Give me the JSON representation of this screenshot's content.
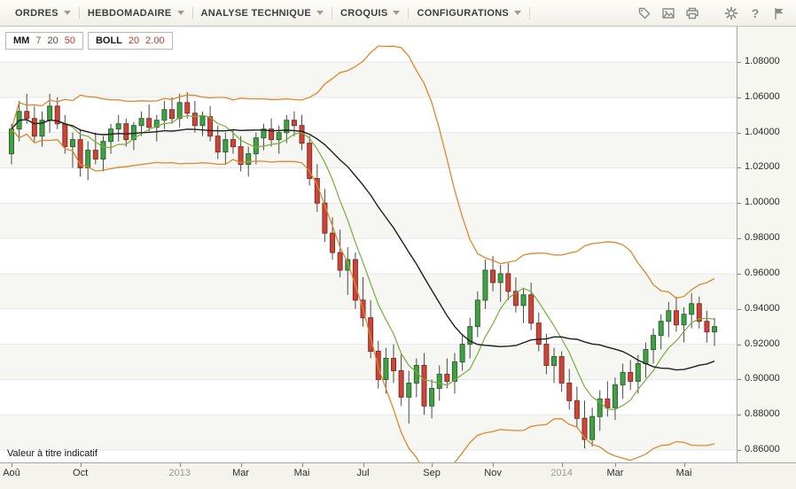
{
  "toolbar": {
    "menus": [
      {
        "id": "ordres",
        "label": "ORDRES"
      },
      {
        "id": "hebdomadaire",
        "label": "HEBDOMADAIRE"
      },
      {
        "id": "analyse-technique",
        "label": "ANALYSE TECHNIQUE"
      },
      {
        "id": "croquis",
        "label": "CROQUIS"
      },
      {
        "id": "configurations",
        "label": "CONFIGURATIONS"
      }
    ],
    "icons": [
      {
        "name": "tags-icon"
      },
      {
        "name": "image-icon"
      },
      {
        "name": "print-icon"
      },
      {
        "name": "settings-icon"
      },
      {
        "name": "help-icon",
        "glyph": "?"
      },
      {
        "name": "flag-icon"
      }
    ]
  },
  "legend": {
    "mm_label": "MM",
    "mm_periods": [
      {
        "value": "7",
        "color": "#2e8b2e"
      },
      {
        "value": "20",
        "color": "#4d4d49"
      },
      {
        "value": "50",
        "color": "#cc3322"
      }
    ],
    "boll_label": "BOLL",
    "boll_params": [
      {
        "value": "20",
        "color": "#cc3322"
      },
      {
        "value": "2.00",
        "color": "#cc3322"
      }
    ]
  },
  "note": "Valeur à titre indicatif",
  "chart_data": {
    "type": "candlestick",
    "timeframe": "weekly (HEBDOMADAIRE)",
    "y_axis": {
      "labels": [
        "1.08000",
        "1.06000",
        "1.04000",
        "1.02000",
        "1.00000",
        "0.98000",
        "0.96000",
        "0.94000",
        "0.92000",
        "0.90000",
        "0.88000",
        "0.86000"
      ],
      "min": 0.86,
      "max": 1.08,
      "step": 0.02,
      "visible_min": 0.853,
      "visible_max": 1.1001
    },
    "x_axis": {
      "labels": [
        {
          "i": 0,
          "text": "Aoû",
          "kind": "month"
        },
        {
          "i": 9,
          "text": "Oct",
          "kind": "month"
        },
        {
          "i": 22,
          "text": "2013",
          "kind": "year"
        },
        {
          "i": 30,
          "text": "Mar",
          "kind": "month"
        },
        {
          "i": 38,
          "text": "Mai",
          "kind": "month"
        },
        {
          "i": 46,
          "text": "Jul",
          "kind": "month"
        },
        {
          "i": 55,
          "text": "Sep",
          "kind": "month"
        },
        {
          "i": 63,
          "text": "Nov",
          "kind": "month"
        },
        {
          "i": 72,
          "text": "2014",
          "kind": "year"
        },
        {
          "i": 79,
          "text": "Mar",
          "kind": "month"
        },
        {
          "i": 88,
          "text": "Mai",
          "kind": "month"
        }
      ]
    },
    "indicators": {
      "sma": [
        {
          "period": 7,
          "color": "#79ad3c",
          "width": 1.2,
          "visible": true
        },
        {
          "period": 20,
          "color": "#1f1f1f",
          "width": 1.4,
          "visible": true
        },
        {
          "period": 50,
          "color": "#cc3322",
          "width": 1.2,
          "visible": false
        }
      ],
      "bollinger": {
        "period": 20,
        "stddev": 2.0,
        "color": "#e0862c",
        "width": 1.3
      }
    },
    "colors": {
      "grid": "#e4e9e8",
      "stripe": "#f6f7f3",
      "wick": "#4a4a46",
      "up_fill": "#43a047",
      "up_stroke": "#27692c",
      "down_fill": "#c9473a",
      "down_stroke": "#8f2b22"
    },
    "candles": [
      [
        1.028,
        1.045,
        1.022,
        1.042
      ],
      [
        1.042,
        1.058,
        1.035,
        1.052
      ],
      [
        1.052,
        1.062,
        1.045,
        1.048
      ],
      [
        1.048,
        1.055,
        1.035,
        1.038
      ],
      [
        1.038,
        1.052,
        1.032,
        1.047
      ],
      [
        1.047,
        1.062,
        1.04,
        1.055
      ],
      [
        1.055,
        1.06,
        1.042,
        1.045
      ],
      [
        1.045,
        1.05,
        1.028,
        1.032
      ],
      [
        1.032,
        1.04,
        1.02,
        1.036
      ],
      [
        1.036,
        1.042,
        1.015,
        1.02
      ],
      [
        1.02,
        1.035,
        1.013,
        1.03
      ],
      [
        1.03,
        1.04,
        1.022,
        1.025
      ],
      [
        1.025,
        1.038,
        1.018,
        1.035
      ],
      [
        1.035,
        1.045,
        1.028,
        1.042
      ],
      [
        1.042,
        1.05,
        1.035,
        1.045
      ],
      [
        1.045,
        1.048,
        1.032,
        1.036
      ],
      [
        1.036,
        1.046,
        1.03,
        1.044
      ],
      [
        1.044,
        1.052,
        1.038,
        1.048
      ],
      [
        1.048,
        1.056,
        1.04,
        1.043
      ],
      [
        1.043,
        1.05,
        1.035,
        1.047
      ],
      [
        1.047,
        1.058,
        1.042,
        1.053
      ],
      [
        1.053,
        1.06,
        1.045,
        1.048
      ],
      [
        1.048,
        1.062,
        1.043,
        1.057
      ],
      [
        1.057,
        1.063,
        1.048,
        1.051
      ],
      [
        1.051,
        1.058,
        1.04,
        1.044
      ],
      [
        1.044,
        1.052,
        1.038,
        1.049
      ],
      [
        1.049,
        1.055,
        1.035,
        1.038
      ],
      [
        1.038,
        1.044,
        1.025,
        1.029
      ],
      [
        1.029,
        1.04,
        1.022,
        1.036
      ],
      [
        1.036,
        1.042,
        1.028,
        1.032
      ],
      [
        1.032,
        1.038,
        1.018,
        1.022
      ],
      [
        1.022,
        1.032,
        1.015,
        1.028
      ],
      [
        1.028,
        1.04,
        1.022,
        1.037
      ],
      [
        1.037,
        1.045,
        1.03,
        1.042
      ],
      [
        1.042,
        1.048,
        1.032,
        1.036
      ],
      [
        1.036,
        1.044,
        1.028,
        1.04
      ],
      [
        1.04,
        1.05,
        1.034,
        1.047
      ],
      [
        1.047,
        1.052,
        1.038,
        1.044
      ],
      [
        1.044,
        1.05,
        1.03,
        1.034
      ],
      [
        1.034,
        1.038,
        1.01,
        1.014
      ],
      [
        1.014,
        1.022,
        0.995,
        1.0
      ],
      [
        1.0,
        1.008,
        0.978,
        0.983
      ],
      [
        0.983,
        0.992,
        0.968,
        0.972
      ],
      [
        0.972,
        0.985,
        0.958,
        0.962
      ],
      [
        0.962,
        0.975,
        0.948,
        0.968
      ],
      [
        0.968,
        0.972,
        0.94,
        0.945
      ],
      [
        0.945,
        0.958,
        0.93,
        0.935
      ],
      [
        0.935,
        0.945,
        0.912,
        0.916
      ],
      [
        0.916,
        0.922,
        0.895,
        0.9
      ],
      [
        0.9,
        0.918,
        0.892,
        0.912
      ],
      [
        0.912,
        0.92,
        0.898,
        0.905
      ],
      [
        0.905,
        0.915,
        0.885,
        0.89
      ],
      [
        0.89,
        0.905,
        0.875,
        0.898
      ],
      [
        0.898,
        0.912,
        0.89,
        0.908
      ],
      [
        0.908,
        0.915,
        0.88,
        0.885
      ],
      [
        0.885,
        0.9,
        0.878,
        0.895
      ],
      [
        0.895,
        0.908,
        0.888,
        0.903
      ],
      [
        0.903,
        0.912,
        0.895,
        0.899
      ],
      [
        0.899,
        0.915,
        0.892,
        0.91
      ],
      [
        0.91,
        0.925,
        0.905,
        0.92
      ],
      [
        0.92,
        0.935,
        0.912,
        0.93
      ],
      [
        0.93,
        0.95,
        0.924,
        0.945
      ],
      [
        0.945,
        0.968,
        0.94,
        0.962
      ],
      [
        0.962,
        0.97,
        0.95,
        0.955
      ],
      [
        0.955,
        0.965,
        0.944,
        0.96
      ],
      [
        0.96,
        0.966,
        0.945,
        0.95
      ],
      [
        0.95,
        0.958,
        0.938,
        0.942
      ],
      [
        0.942,
        0.952,
        0.932,
        0.948
      ],
      [
        0.948,
        0.955,
        0.928,
        0.932
      ],
      [
        0.932,
        0.938,
        0.916,
        0.92
      ],
      [
        0.92,
        0.926,
        0.903,
        0.908
      ],
      [
        0.908,
        0.918,
        0.898,
        0.913
      ],
      [
        0.913,
        0.916,
        0.893,
        0.898
      ],
      [
        0.898,
        0.906,
        0.883,
        0.888
      ],
      [
        0.888,
        0.896,
        0.873,
        0.878
      ],
      [
        0.878,
        0.888,
        0.861,
        0.866
      ],
      [
        0.866,
        0.884,
        0.862,
        0.879
      ],
      [
        0.879,
        0.894,
        0.871,
        0.889
      ],
      [
        0.889,
        0.899,
        0.879,
        0.884
      ],
      [
        0.884,
        0.901,
        0.877,
        0.897
      ],
      [
        0.897,
        0.909,
        0.889,
        0.904
      ],
      [
        0.904,
        0.911,
        0.894,
        0.899
      ],
      [
        0.899,
        0.914,
        0.892,
        0.909
      ],
      [
        0.909,
        0.921,
        0.901,
        0.917
      ],
      [
        0.917,
        0.929,
        0.909,
        0.925
      ],
      [
        0.925,
        0.937,
        0.917,
        0.933
      ],
      [
        0.933,
        0.944,
        0.924,
        0.939
      ],
      [
        0.939,
        0.947,
        0.927,
        0.931
      ],
      [
        0.931,
        0.941,
        0.921,
        0.937
      ],
      [
        0.937,
        0.949,
        0.929,
        0.943
      ],
      [
        0.943,
        0.947,
        0.929,
        0.933
      ],
      [
        0.933,
        0.939,
        0.921,
        0.927
      ],
      [
        0.927,
        0.935,
        0.919,
        0.93
      ]
    ]
  }
}
